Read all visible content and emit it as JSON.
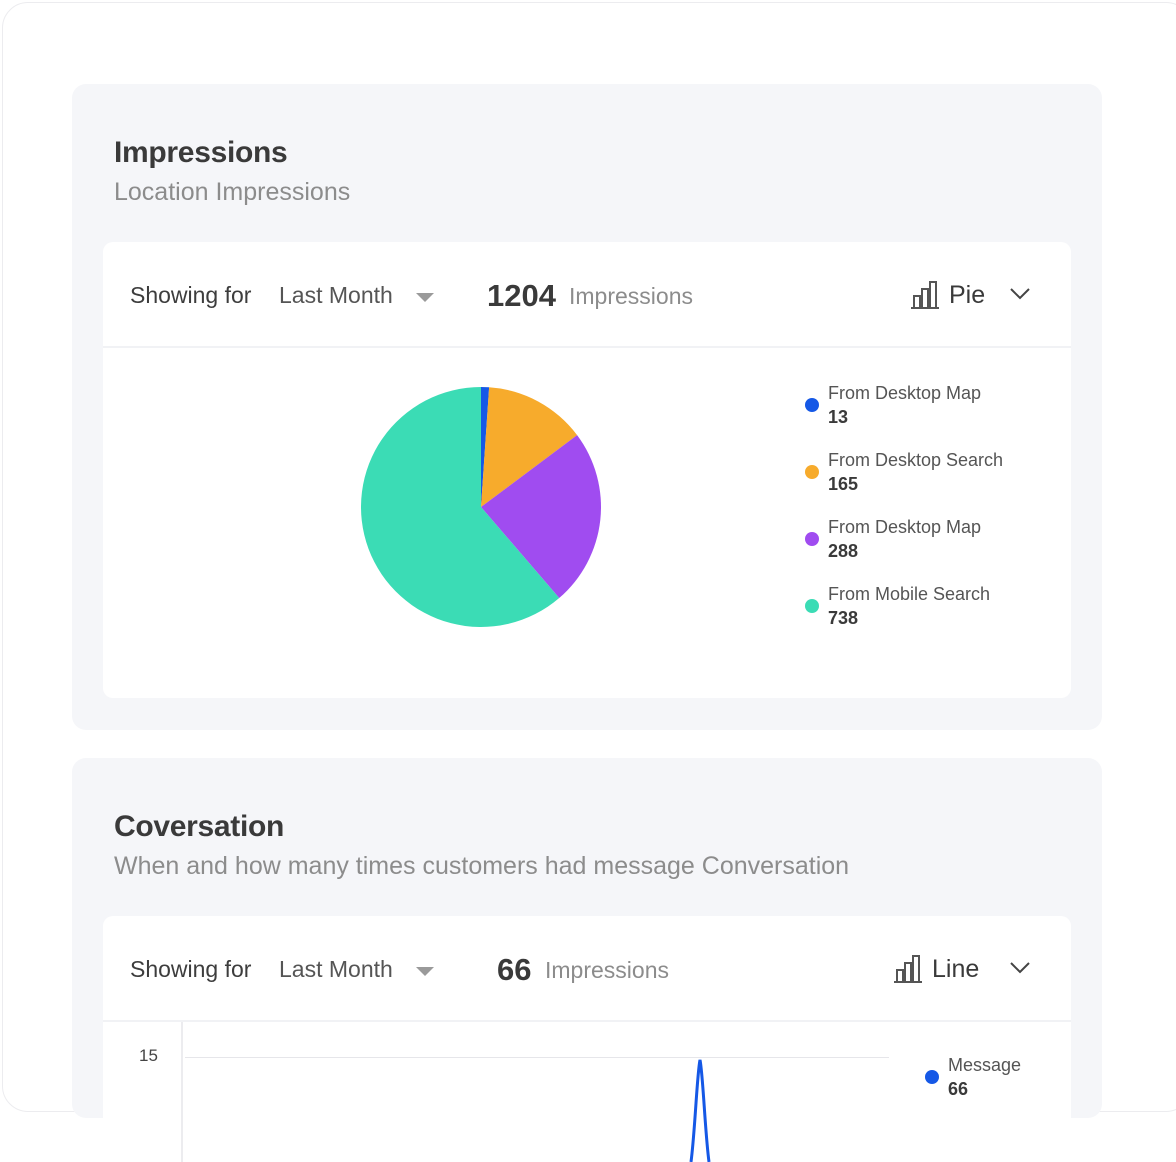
{
  "impressions_card": {
    "title": "Impressions",
    "subtitle": "Location Impressions",
    "showing_label": "Showing for",
    "period": "Last Month",
    "total": "1204",
    "total_label": "Impressions",
    "chart_type": "Pie",
    "chart_type_icon": "bar-chart-icon"
  },
  "conversation_card": {
    "title": "Coversation",
    "subtitle": "When and how many times customers had message Conversation",
    "showing_label": "Showing for",
    "period": "Last Month",
    "total": "66",
    "total_label": "Impressions",
    "chart_type": "Line",
    "chart_type_icon": "bar-chart-icon"
  },
  "chart_data": [
    {
      "type": "pie",
      "title": "",
      "legend_position": "right",
      "slices": [
        {
          "label": "From Desktop Map",
          "value": 13,
          "color": "#1558e6"
        },
        {
          "label": "From Desktop Search",
          "value": 165,
          "color": "#f7ab2c"
        },
        {
          "label": "From Desktop Map",
          "value": 288,
          "color": "#a04cf0"
        },
        {
          "label": "From Mobile Search",
          "value": 738,
          "color": "#3bdcb5"
        }
      ]
    },
    {
      "type": "line",
      "title": "",
      "y_ticks": [
        "15"
      ],
      "grid": true,
      "legend_position": "right",
      "series": [
        {
          "name": "Message",
          "value_label": "66",
          "color": "#1558e6"
        }
      ]
    }
  ]
}
